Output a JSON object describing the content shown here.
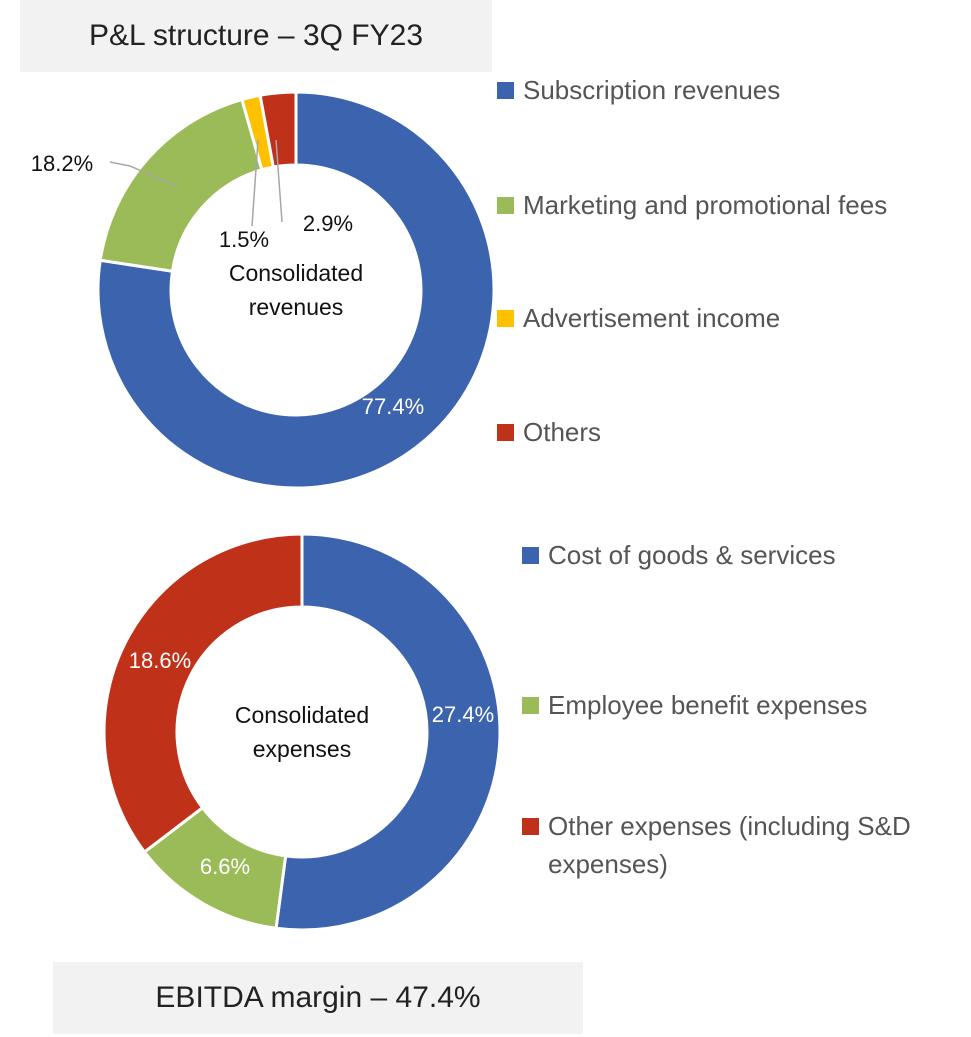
{
  "title": "P&L structure – 3Q FY23",
  "footer": "EBITDA margin – 47.4%",
  "chart_data": [
    {
      "type": "pie",
      "donut": true,
      "center_label": "Consolidated revenues",
      "categories": [
        "Subscription revenues",
        "Marketing and promotional fees",
        "Advertisement income",
        "Others"
      ],
      "values": [
        77.4,
        18.2,
        1.5,
        2.9
      ],
      "value_labels": [
        "77.4%",
        "18.2%",
        "1.5%",
        "2.9%"
      ],
      "colors": [
        "#3c64ae",
        "#9bbb59",
        "#ffc000",
        "#c0311a"
      ]
    },
    {
      "type": "pie",
      "donut": true,
      "center_label": "Consolidated expenses",
      "categories": [
        "Cost of goods & services",
        "Employee benefit expenses",
        "Other expenses (including S&D expenses)"
      ],
      "values": [
        27.4,
        6.6,
        18.6
      ],
      "value_labels": [
        "27.4%",
        "6.6%",
        "18.6%"
      ],
      "colors": [
        "#3c64ae",
        "#9bbb59",
        "#c0311a"
      ]
    }
  ]
}
